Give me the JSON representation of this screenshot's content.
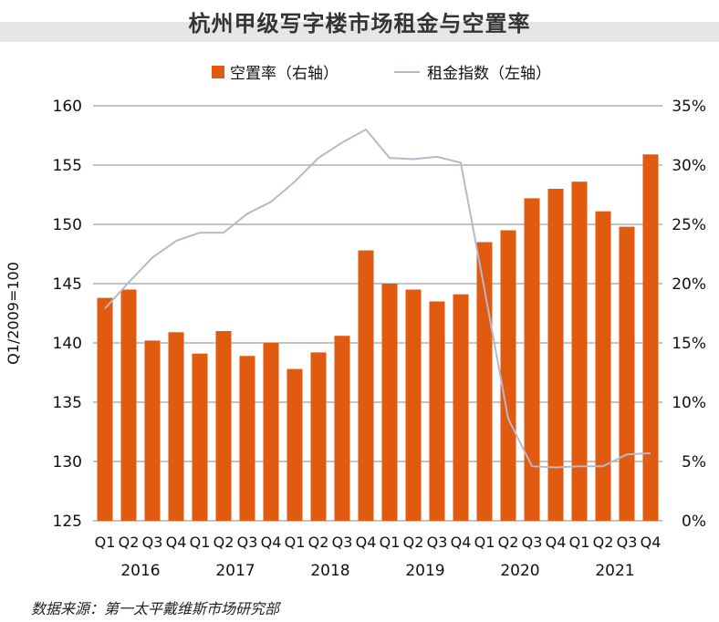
{
  "title": "杭州甲级写字楼市场租金与空置率",
  "legend": {
    "bar_label": "空置率（右轴）",
    "line_label": "租金指数（左轴）"
  },
  "source": "数据来源：第一太平戴维斯市场研究部",
  "colors": {
    "bar": "#e05a10",
    "line": "#b8b8cc",
    "title_band": "#e6e6e6",
    "grid": "#888888"
  },
  "chart_data": {
    "type": "bar",
    "combo_line": true,
    "title": "杭州甲级写字楼市场租金与空置率",
    "ylabel_left": "Q1/2009=100",
    "ylabel_right": "",
    "ylim_left": [
      125,
      160
    ],
    "ylim_right": [
      0,
      35
    ],
    "left_ticks": [
      "125",
      "130",
      "135",
      "140",
      "145",
      "150",
      "155",
      "160"
    ],
    "right_ticks": [
      "0%",
      "5%",
      "10%",
      "15%",
      "20%",
      "25%",
      "30%",
      "35%"
    ],
    "quarters": [
      "Q1",
      "Q2",
      "Q3",
      "Q4",
      "Q1",
      "Q2",
      "Q3",
      "Q4",
      "Q1",
      "Q2",
      "Q3",
      "Q4",
      "Q1",
      "Q2",
      "Q3",
      "Q4",
      "Q1",
      "Q2",
      "Q3",
      "Q4",
      "Q1",
      "Q2",
      "Q3",
      "Q4"
    ],
    "years": [
      "2016",
      "2017",
      "2018",
      "2019",
      "2020",
      "2021"
    ],
    "grid": "horizontal",
    "legend_position": "top",
    "series": [
      {
        "name": "空置率（右轴）",
        "type": "bar",
        "axis": "right",
        "values": [
          18.8,
          19.5,
          15.2,
          15.9,
          14.1,
          16.0,
          13.9,
          15.0,
          12.8,
          14.2,
          15.6,
          22.8,
          20.0,
          19.5,
          18.5,
          19.1,
          23.5,
          24.5,
          27.2,
          28.0,
          28.6,
          26.1,
          24.8,
          30.9
        ]
      },
      {
        "name": "租金指数（左轴）",
        "type": "line",
        "axis": "left",
        "values": [
          142.9,
          145.1,
          147.2,
          148.6,
          149.3,
          149.3,
          150.9,
          151.9,
          153.6,
          155.6,
          156.9,
          158.0,
          155.6,
          155.5,
          155.7,
          155.2,
          144.5,
          133.6,
          129.6,
          129.5,
          129.6,
          129.6,
          130.6,
          130.7
        ]
      }
    ]
  }
}
